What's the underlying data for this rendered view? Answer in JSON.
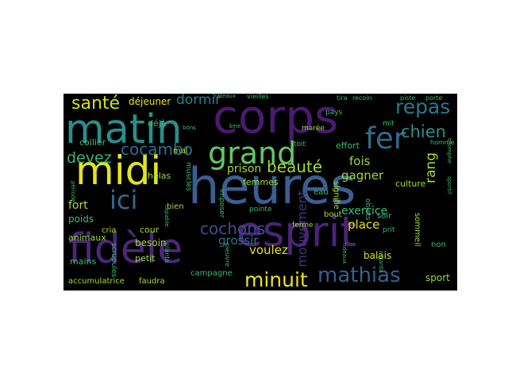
{
  "chart_data": {
    "type": "wordcloud",
    "background": "#000000",
    "colormap": "viridis",
    "words": [
      {
        "text": "heures",
        "weight": 1.0,
        "color": "#3b5e92",
        "orientation": "horizontal"
      },
      {
        "text": "corps",
        "weight": 0.93,
        "color": "#4a1a6e",
        "orientation": "horizontal"
      },
      {
        "text": "esprit",
        "weight": 0.86,
        "color": "#4b2379",
        "orientation": "horizontal"
      },
      {
        "text": "fidèle",
        "weight": 0.84,
        "color": "#4b2779",
        "orientation": "horizontal"
      },
      {
        "text": "matin",
        "weight": 0.82,
        "color": "#2a8e8c",
        "orientation": "horizontal"
      },
      {
        "text": "midi",
        "weight": 0.8,
        "color": "#e2e41d",
        "orientation": "horizontal"
      },
      {
        "text": "grand",
        "weight": 0.62,
        "color": "#62c962",
        "orientation": "horizontal"
      },
      {
        "text": "fer",
        "weight": 0.6,
        "color": "#2e6b8e",
        "orientation": "horizontal"
      },
      {
        "text": "ici",
        "weight": 0.52,
        "color": "#2e6b8e",
        "orientation": "horizontal"
      },
      {
        "text": "mathias",
        "weight": 0.42,
        "color": "#33628d",
        "orientation": "horizontal"
      },
      {
        "text": "minuit",
        "weight": 0.4,
        "color": "#e8e51a",
        "orientation": "horizontal"
      },
      {
        "text": "repas",
        "weight": 0.4,
        "color": "#2a7a8e",
        "orientation": "horizontal"
      },
      {
        "text": "santé",
        "weight": 0.36,
        "color": "#d0e11c",
        "orientation": "horizontal"
      },
      {
        "text": "chien",
        "weight": 0.34,
        "color": "#2a8e8c",
        "orientation": "horizontal"
      },
      {
        "text": "beauté",
        "weight": 0.32,
        "color": "#9fda3a",
        "orientation": "horizontal"
      },
      {
        "text": "cochons",
        "weight": 0.32,
        "color": "#3b518b",
        "orientation": "horizontal"
      },
      {
        "text": "cocambo",
        "weight": 0.32,
        "color": "#2d708e",
        "orientation": "horizontal"
      },
      {
        "text": "devez",
        "weight": 0.3,
        "color": "#35b779",
        "orientation": "horizontal"
      },
      {
        "text": "dormir",
        "weight": 0.28,
        "color": "#2a7f8e",
        "orientation": "horizontal"
      },
      {
        "text": "rang",
        "weight": 0.28,
        "color": "#a2da37",
        "orientation": "vertical"
      },
      {
        "text": "mouvement",
        "weight": 0.26,
        "color": "#46327e",
        "orientation": "vertical"
      },
      {
        "text": "voulez",
        "weight": 0.24,
        "color": "#e3e418",
        "orientation": "horizontal"
      },
      {
        "text": "grossir",
        "weight": 0.24,
        "color": "#2c728e",
        "orientation": "horizontal"
      },
      {
        "text": "place",
        "weight": 0.24,
        "color": "#e5e419",
        "orientation": "horizontal"
      },
      {
        "text": "fois",
        "weight": 0.24,
        "color": "#9bd93c",
        "orientation": "horizontal"
      },
      {
        "text": "gagner",
        "weight": 0.24,
        "color": "#9bd93c",
        "orientation": "horizontal"
      },
      {
        "text": "prison",
        "weight": 0.22,
        "color": "#a0da39",
        "orientation": "horizontal"
      },
      {
        "text": "exercice",
        "weight": 0.22,
        "color": "#3bbb75",
        "orientation": "horizontal"
      },
      {
        "text": "fort",
        "weight": 0.22,
        "color": "#a5db36",
        "orientation": "horizontal"
      },
      {
        "text": "sport",
        "weight": 0.2,
        "color": "#9bd93c",
        "orientation": "horizontal"
      },
      {
        "text": "balais",
        "weight": 0.2,
        "color": "#d8e219",
        "orientation": "horizontal"
      },
      {
        "text": "déjeuner",
        "weight": 0.2,
        "color": "#e5e419",
        "orientation": "horizontal"
      },
      {
        "text": "besoin",
        "weight": 0.2,
        "color": "#a5db36",
        "orientation": "horizontal"
      },
      {
        "text": "poids",
        "weight": 0.2,
        "color": "#3bbb75",
        "orientation": "horizontal"
      },
      {
        "text": "collier",
        "weight": 0.18,
        "color": "#3bbb75",
        "orientation": "horizontal"
      },
      {
        "text": "culture",
        "weight": 0.18,
        "color": "#9bd93c",
        "orientation": "horizontal"
      },
      {
        "text": "effort",
        "weight": 0.18,
        "color": "#3bbb75",
        "orientation": "horizontal"
      },
      {
        "text": "hélas",
        "weight": 0.18,
        "color": "#a0da39",
        "orientation": "horizontal"
      },
      {
        "text": "femmes",
        "weight": 0.17,
        "color": "#9bd93c",
        "orientation": "horizontal"
      },
      {
        "text": "déjà",
        "weight": 0.17,
        "color": "#3bbb75",
        "orientation": "horizontal"
      },
      {
        "text": "petit",
        "weight": 0.17,
        "color": "#9bd93c",
        "orientation": "horizontal"
      },
      {
        "text": "cour",
        "weight": 0.17,
        "color": "#a5db36",
        "orientation": "horizontal"
      },
      {
        "text": "mains",
        "weight": 0.17,
        "color": "#3bbb75",
        "orientation": "horizontal"
      },
      {
        "text": "animaux",
        "weight": 0.17,
        "color": "#9bd93c",
        "orientation": "horizontal"
      },
      {
        "text": "accumulatrice",
        "weight": 0.16,
        "color": "#a5db36",
        "orientation": "horizontal"
      },
      {
        "text": "faudra",
        "weight": 0.16,
        "color": "#a5db36",
        "orientation": "horizontal"
      },
      {
        "text": "campagne",
        "weight": 0.16,
        "color": "#3bbb75",
        "orientation": "horizontal"
      },
      {
        "text": "cria",
        "weight": 0.16,
        "color": "#a5db36",
        "orientation": "horizontal"
      },
      {
        "text": "bien",
        "weight": 0.16,
        "color": "#9bd93c",
        "orientation": "horizontal"
      },
      {
        "text": "mal",
        "weight": 0.16,
        "color": "#a5db36",
        "orientation": "horizontal"
      },
      {
        "text": "eau",
        "weight": 0.16,
        "color": "#3bbb75",
        "orientation": "horizontal"
      },
      {
        "text": "bout",
        "weight": 0.16,
        "color": "#a5db36",
        "orientation": "horizontal"
      },
      {
        "text": "soir",
        "weight": 0.16,
        "color": "#3bbb75",
        "orientation": "horizontal"
      },
      {
        "text": "non",
        "weight": 0.16,
        "color": "#3bbb75",
        "orientation": "horizontal"
      },
      {
        "text": "ferme",
        "weight": 0.15,
        "color": "#a5db36",
        "orientation": "horizontal"
      },
      {
        "text": "pointe",
        "weight": 0.15,
        "color": "#3bbb75",
        "orientation": "horizontal"
      },
      {
        "text": "prit",
        "weight": 0.15,
        "color": "#3bbb75",
        "orientation": "horizontal"
      },
      {
        "text": "pays",
        "weight": 0.15,
        "color": "#3bbb75",
        "orientation": "horizontal"
      },
      {
        "text": "toit",
        "weight": 0.14,
        "color": "#3bbb75",
        "orientation": "horizontal"
      },
      {
        "text": "mit",
        "weight": 0.14,
        "color": "#3bbb75",
        "orientation": "horizontal"
      },
      {
        "text": "marée",
        "weight": 0.14,
        "color": "#a5db36",
        "orientation": "horizontal"
      },
      {
        "text": "homme",
        "weight": 0.13,
        "color": "#3bbb75",
        "orientation": "horizontal"
      },
      {
        "text": "tira",
        "weight": 0.13,
        "color": "#3bbb75",
        "orientation": "horizontal"
      },
      {
        "text": "recoin",
        "weight": 0.13,
        "color": "#3bbb75",
        "orientation": "horizontal"
      },
      {
        "text": "piste",
        "weight": 0.13,
        "color": "#3bbb75",
        "orientation": "horizontal"
      },
      {
        "text": "porte",
        "weight": 0.13,
        "color": "#3bbb75",
        "orientation": "horizontal"
      },
      {
        "text": "vieilles",
        "weight": 0.13,
        "color": "#3bbb75",
        "orientation": "horizontal"
      },
      {
        "text": "râteaux",
        "weight": 0.12,
        "color": "#3bbb75",
        "orientation": "horizontal"
      },
      {
        "text": "bons",
        "weight": 0.12,
        "color": "#3bbb75",
        "orientation": "horizontal"
      },
      {
        "text": "âme",
        "weight": 0.12,
        "color": "#3bbb75",
        "orientation": "horizontal"
      },
      {
        "text": "muscles",
        "weight": 0.14,
        "color": "#3bbb75",
        "orientation": "vertical"
      },
      {
        "text": "imposer",
        "weight": 0.14,
        "color": "#3bbb75",
        "orientation": "vertical"
      },
      {
        "text": "signifie",
        "weight": 0.16,
        "color": "#a5db36",
        "orientation": "vertical"
      },
      {
        "text": "objets",
        "weight": 0.14,
        "color": "#3bbb75",
        "orientation": "vertical"
      },
      {
        "text": "sommeil",
        "weight": 0.16,
        "color": "#a5db36",
        "orientation": "vertical"
      },
      {
        "text": "scrupules",
        "weight": 0.14,
        "color": "#3bbb75",
        "orientation": "vertical"
      },
      {
        "text": "planta",
        "weight": 0.13,
        "color": "#3bbb75",
        "orientation": "vertical"
      },
      {
        "text": "pieuvre",
        "weight": 0.13,
        "color": "#3bbb75",
        "orientation": "vertical"
      },
      {
        "text": "regarda",
        "weight": 0.12,
        "color": "#3bbb75",
        "orientation": "vertical"
      },
      {
        "text": "rideaux",
        "weight": 0.12,
        "color": "#3bbb75",
        "orientation": "vertical"
      },
      {
        "text": "capable",
        "weight": 0.12,
        "color": "#3bbb75",
        "orientation": "vertical"
      },
      {
        "text": "période",
        "weight": 0.12,
        "color": "#3bbb75",
        "orientation": "vertical"
      },
      {
        "text": "sportif",
        "weight": 0.12,
        "color": "#3bbb75",
        "orientation": "vertical"
      },
      {
        "text": "triomphe",
        "weight": 0.12,
        "color": "#3bbb75",
        "orientation": "vertical"
      }
    ]
  }
}
